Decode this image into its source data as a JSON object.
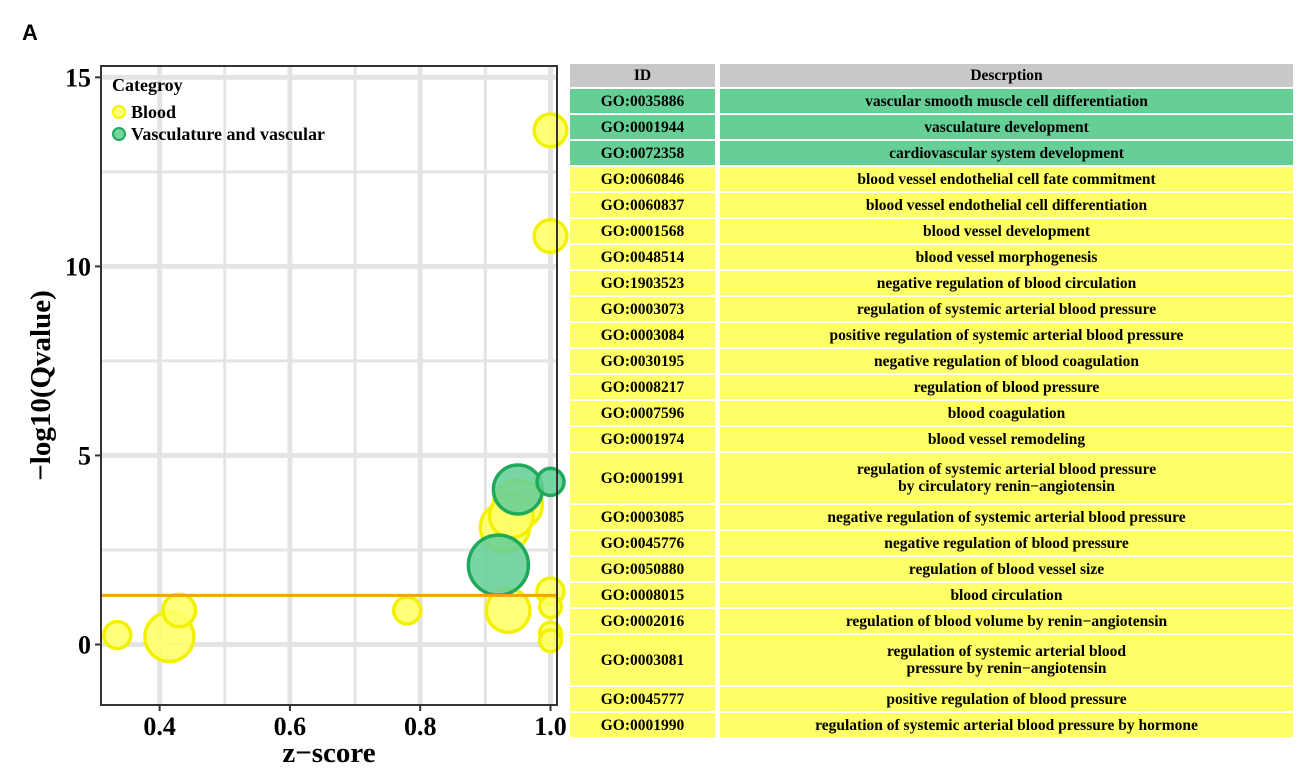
{
  "panel_label": "A",
  "colors": {
    "Blood": "#ffff66",
    "Blood_stroke": "#f2f200",
    "Vasculature and vascular": "#66cf96",
    "Vasculature and vascular_stroke": "#1eaa5a",
    "threshold": "#f5a300",
    "grid": "#e4e4e4",
    "table_header": "#c8c8c8"
  },
  "chart_data": {
    "type": "scatter",
    "xlabel": "z−score",
    "ylabel": "−log10(Qvalue)",
    "xlim": [
      0.31,
      1.01
    ],
    "ylim": [
      -1.6,
      15.3
    ],
    "x_ticks": [
      0.4,
      0.6,
      0.8,
      1.0
    ],
    "x_tick_labels": [
      "0.4",
      "0.6",
      "0.8",
      "1.0"
    ],
    "y_ticks": [
      0,
      5,
      10,
      15
    ],
    "y_tick_labels": [
      "0",
      "5",
      "10",
      "15"
    ],
    "grid": true,
    "threshold_line": 1.3,
    "legend": {
      "title": "Categroy",
      "position": "top-left",
      "entries": [
        "Blood",
        "Vasculature and vascular"
      ]
    },
    "series": [
      {
        "name": "Blood",
        "points": [
          {
            "x": 1.0,
            "y": 13.6,
            "size": 3
          },
          {
            "x": 1.0,
            "y": 10.8,
            "size": 3
          },
          {
            "x": 0.95,
            "y": 3.7,
            "size": 6
          },
          {
            "x": 0.94,
            "y": 3.4,
            "size": 5
          },
          {
            "x": 0.93,
            "y": 3.1,
            "size": 6
          },
          {
            "x": 0.935,
            "y": 0.9,
            "size": 5
          },
          {
            "x": 1.0,
            "y": 1.4,
            "size": 2
          },
          {
            "x": 1.0,
            "y": 1.0,
            "size": 1
          },
          {
            "x": 1.0,
            "y": 0.3,
            "size": 1
          },
          {
            "x": 1.0,
            "y": 0.1,
            "size": 1
          },
          {
            "x": 0.78,
            "y": 0.9,
            "size": 2
          },
          {
            "x": 0.43,
            "y": 0.9,
            "size": 3
          },
          {
            "x": 0.415,
            "y": 0.2,
            "size": 6
          },
          {
            "x": 0.335,
            "y": 0.25,
            "size": 2
          }
        ]
      },
      {
        "name": "Vasculature and vascular",
        "points": [
          {
            "x": 0.95,
            "y": 4.1,
            "size": 6
          },
          {
            "x": 1.0,
            "y": 4.3,
            "size": 2
          },
          {
            "x": 0.92,
            "y": 2.1,
            "size": 8
          }
        ]
      }
    ]
  },
  "table": {
    "headers": {
      "id": "ID",
      "description": "Descrption"
    },
    "rows": [
      {
        "id": "GO:0035886",
        "category": "Vasculature and vascular",
        "lines": [
          "vascular smooth muscle cell differentiation"
        ]
      },
      {
        "id": "GO:0001944",
        "category": "Vasculature and vascular",
        "lines": [
          "vasculature development"
        ]
      },
      {
        "id": "GO:0072358",
        "category": "Vasculature and vascular",
        "lines": [
          "cardiovascular system development"
        ]
      },
      {
        "id": "GO:0060846",
        "category": "Blood",
        "lines": [
          "blood vessel endothelial cell fate commitment"
        ]
      },
      {
        "id": "GO:0060837",
        "category": "Blood",
        "lines": [
          "blood vessel endothelial cell differentiation"
        ]
      },
      {
        "id": "GO:0001568",
        "category": "Blood",
        "lines": [
          "blood vessel development"
        ]
      },
      {
        "id": "GO:0048514",
        "category": "Blood",
        "lines": [
          "blood vessel morphogenesis"
        ]
      },
      {
        "id": "GO:1903523",
        "category": "Blood",
        "lines": [
          "negative regulation of blood circulation"
        ]
      },
      {
        "id": "GO:0003073",
        "category": "Blood",
        "lines": [
          "regulation of systemic arterial blood pressure"
        ]
      },
      {
        "id": "GO:0003084",
        "category": "Blood",
        "lines": [
          "positive regulation of systemic arterial blood pressure"
        ]
      },
      {
        "id": "GO:0030195",
        "category": "Blood",
        "lines": [
          "negative regulation of blood coagulation"
        ]
      },
      {
        "id": "GO:0008217",
        "category": "Blood",
        "lines": [
          "regulation of blood pressure"
        ]
      },
      {
        "id": "GO:0007596",
        "category": "Blood",
        "lines": [
          "blood coagulation"
        ]
      },
      {
        "id": "GO:0001974",
        "category": "Blood",
        "lines": [
          "blood vessel remodeling"
        ]
      },
      {
        "id": "GO:0001991",
        "category": "Blood",
        "lines": [
          "regulation of systemic arterial blood pressure",
          "by circulatory renin−angiotensin"
        ]
      },
      {
        "id": "GO:0003085",
        "category": "Blood",
        "lines": [
          "negative regulation of systemic arterial blood pressure"
        ]
      },
      {
        "id": "GO:0045776",
        "category": "Blood",
        "lines": [
          "negative regulation of blood pressure"
        ]
      },
      {
        "id": "GO:0050880",
        "category": "Blood",
        "lines": [
          "regulation of blood vessel size"
        ]
      },
      {
        "id": "GO:0008015",
        "category": "Blood",
        "lines": [
          "blood circulation"
        ]
      },
      {
        "id": "GO:0002016",
        "category": "Blood",
        "lines": [
          "regulation of blood volume by renin−angiotensin"
        ]
      },
      {
        "id": "GO:0003081",
        "category": "Blood",
        "lines": [
          "regulation of systemic arterial blood",
          "pressure by renin−angiotensin"
        ]
      },
      {
        "id": "GO:0045777",
        "category": "Blood",
        "lines": [
          "positive regulation of blood pressure"
        ]
      },
      {
        "id": "GO:0001990",
        "category": "Blood",
        "lines": [
          "regulation of systemic arterial blood pressure by hormone"
        ]
      }
    ]
  }
}
